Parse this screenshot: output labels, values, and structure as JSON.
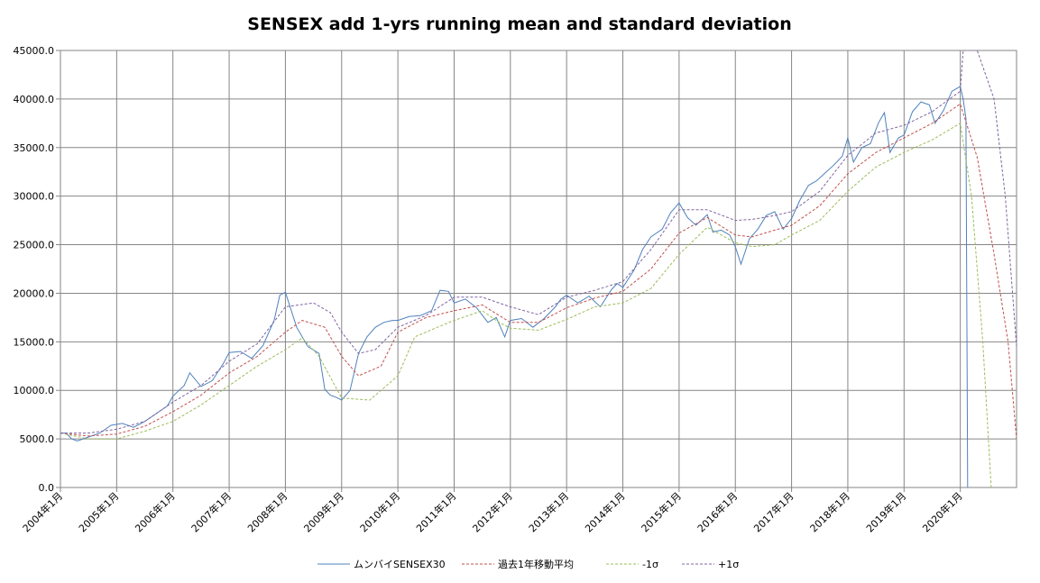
{
  "chart_data": {
    "type": "line",
    "title": "SENSEX add 1-yrs running mean and standard deviation",
    "xlabel": "",
    "ylabel": "",
    "ylim": [
      0,
      45000
    ],
    "yticks": [
      "0.0",
      "5000.0",
      "10000.0",
      "15000.0",
      "20000.0",
      "25000.0",
      "30000.0",
      "35000.0",
      "40000.0",
      "45000.0"
    ],
    "xticks": [
      "2004年1月",
      "2005年1月",
      "2006年1月",
      "2007年1月",
      "2008年1月",
      "2009年1月",
      "2010年1月",
      "2011年1月",
      "2012年1月",
      "2013年1月",
      "2014年1月",
      "2015年1月",
      "2016年1月",
      "2017年1月",
      "2018年1月",
      "2019年1月",
      "2020年1月"
    ],
    "x_start_year": 2004,
    "x_range_years": [
      2004,
      2021
    ],
    "grid": true,
    "legend": "bottom",
    "series": [
      {
        "name": "ムンバイSENSEX30",
        "color": "#4f81bd",
        "dash": "",
        "points": [
          [
            2004.0,
            5600
          ],
          [
            2004.1,
            5600
          ],
          [
            2004.2,
            5000
          ],
          [
            2004.3,
            4800
          ],
          [
            2004.5,
            5200
          ],
          [
            2004.7,
            5600
          ],
          [
            2004.9,
            6400
          ],
          [
            2005.1,
            6600
          ],
          [
            2005.3,
            6200
          ],
          [
            2005.5,
            6800
          ],
          [
            2005.7,
            7600
          ],
          [
            2005.9,
            8400
          ],
          [
            2006.0,
            9400
          ],
          [
            2006.2,
            10500
          ],
          [
            2006.3,
            11800
          ],
          [
            2006.5,
            10400
          ],
          [
            2006.7,
            11000
          ],
          [
            2006.9,
            12800
          ],
          [
            2007.0,
            13900
          ],
          [
            2007.2,
            14000
          ],
          [
            2007.4,
            13300
          ],
          [
            2007.6,
            14600
          ],
          [
            2007.8,
            17200
          ],
          [
            2007.9,
            19800
          ],
          [
            2008.0,
            20100
          ],
          [
            2008.2,
            16500
          ],
          [
            2008.4,
            14500
          ],
          [
            2008.6,
            13800
          ],
          [
            2008.7,
            10100
          ],
          [
            2008.8,
            9500
          ],
          [
            2008.9,
            9300
          ],
          [
            2009.0,
            9000
          ],
          [
            2009.15,
            10000
          ],
          [
            2009.3,
            13800
          ],
          [
            2009.45,
            15500
          ],
          [
            2009.6,
            16500
          ],
          [
            2009.75,
            17000
          ],
          [
            2009.9,
            17200
          ],
          [
            2010.0,
            17200
          ],
          [
            2010.2,
            17600
          ],
          [
            2010.4,
            17700
          ],
          [
            2010.6,
            18200
          ],
          [
            2010.75,
            20300
          ],
          [
            2010.9,
            20200
          ],
          [
            2011.0,
            19000
          ],
          [
            2011.2,
            19400
          ],
          [
            2011.4,
            18500
          ],
          [
            2011.6,
            17000
          ],
          [
            2011.75,
            17500
          ],
          [
            2011.9,
            15500
          ],
          [
            2012.0,
            17200
          ],
          [
            2012.2,
            17400
          ],
          [
            2012.4,
            16500
          ],
          [
            2012.6,
            17400
          ],
          [
            2012.8,
            18600
          ],
          [
            2012.9,
            19400
          ],
          [
            2013.0,
            19800
          ],
          [
            2013.2,
            19000
          ],
          [
            2013.4,
            19700
          ],
          [
            2013.6,
            18600
          ],
          [
            2013.8,
            20400
          ],
          [
            2013.9,
            21000
          ],
          [
            2014.0,
            20600
          ],
          [
            2014.2,
            22400
          ],
          [
            2014.35,
            24500
          ],
          [
            2014.5,
            25800
          ],
          [
            2014.7,
            26600
          ],
          [
            2014.85,
            28300
          ],
          [
            2015.0,
            29300
          ],
          [
            2015.15,
            27800
          ],
          [
            2015.3,
            27000
          ],
          [
            2015.5,
            28100
          ],
          [
            2015.6,
            26300
          ],
          [
            2015.75,
            26500
          ],
          [
            2015.9,
            26000
          ],
          [
            2016.0,
            24800
          ],
          [
            2016.1,
            23000
          ],
          [
            2016.25,
            25600
          ],
          [
            2016.4,
            26600
          ],
          [
            2016.55,
            28000
          ],
          [
            2016.7,
            28400
          ],
          [
            2016.85,
            26600
          ],
          [
            2017.0,
            27700
          ],
          [
            2017.15,
            29600
          ],
          [
            2017.3,
            31100
          ],
          [
            2017.45,
            31600
          ],
          [
            2017.6,
            32400
          ],
          [
            2017.75,
            33200
          ],
          [
            2017.9,
            34100
          ],
          [
            2018.0,
            36000
          ],
          [
            2018.1,
            33500
          ],
          [
            2018.25,
            35000
          ],
          [
            2018.4,
            35400
          ],
          [
            2018.55,
            37600
          ],
          [
            2018.65,
            38600
          ],
          [
            2018.75,
            34500
          ],
          [
            2018.9,
            36000
          ],
          [
            2019.0,
            36300
          ],
          [
            2019.15,
            38700
          ],
          [
            2019.3,
            39700
          ],
          [
            2019.45,
            39400
          ],
          [
            2019.55,
            37500
          ],
          [
            2019.7,
            38800
          ],
          [
            2019.85,
            40800
          ],
          [
            2020.0,
            41300
          ],
          [
            2020.05,
            40000
          ],
          [
            2020.1,
            38000
          ],
          [
            2020.13,
            0
          ]
        ]
      },
      {
        "name": "過去1年移動平均",
        "color": "#c0504d",
        "dash": "3,2",
        "points": [
          [
            2004.0,
            5600
          ],
          [
            2004.5,
            5300
          ],
          [
            2005.0,
            5500
          ],
          [
            2005.5,
            6300
          ],
          [
            2006.0,
            7800
          ],
          [
            2006.5,
            9500
          ],
          [
            2007.0,
            11800
          ],
          [
            2007.5,
            13500
          ],
          [
            2008.0,
            16000
          ],
          [
            2008.3,
            17200
          ],
          [
            2008.7,
            16500
          ],
          [
            2009.0,
            13500
          ],
          [
            2009.3,
            11500
          ],
          [
            2009.7,
            12500
          ],
          [
            2010.0,
            16000
          ],
          [
            2010.5,
            17500
          ],
          [
            2011.0,
            18200
          ],
          [
            2011.5,
            18800
          ],
          [
            2012.0,
            17000
          ],
          [
            2012.5,
            17000
          ],
          [
            2013.0,
            18500
          ],
          [
            2013.5,
            19500
          ],
          [
            2014.0,
            20200
          ],
          [
            2014.5,
            22500
          ],
          [
            2015.0,
            26200
          ],
          [
            2015.5,
            27800
          ],
          [
            2016.0,
            26000
          ],
          [
            2016.3,
            25800
          ],
          [
            2016.7,
            26500
          ],
          [
            2017.0,
            27000
          ],
          [
            2017.5,
            29000
          ],
          [
            2018.0,
            32300
          ],
          [
            2018.5,
            34500
          ],
          [
            2019.0,
            36000
          ],
          [
            2019.5,
            37500
          ],
          [
            2020.0,
            39500
          ],
          [
            2020.3,
            34000
          ],
          [
            2020.6,
            24000
          ],
          [
            2020.85,
            15000
          ],
          [
            2021.0,
            5000
          ],
          [
            2021.1,
            3000
          ]
        ]
      },
      {
        "name": "-1σ",
        "color": "#9bbb59",
        "dash": "3,2",
        "points": [
          [
            2004.0,
            5600
          ],
          [
            2004.5,
            5000
          ],
          [
            2005.0,
            5000
          ],
          [
            2005.5,
            5800
          ],
          [
            2006.0,
            6800
          ],
          [
            2006.5,
            8500
          ],
          [
            2007.0,
            10500
          ],
          [
            2007.5,
            12500
          ],
          [
            2008.0,
            14200
          ],
          [
            2008.3,
            15400
          ],
          [
            2008.6,
            13500
          ],
          [
            2009.0,
            9200
          ],
          [
            2009.5,
            9000
          ],
          [
            2010.0,
            11500
          ],
          [
            2010.3,
            15500
          ],
          [
            2010.7,
            16500
          ],
          [
            2011.0,
            17200
          ],
          [
            2011.5,
            18200
          ],
          [
            2011.8,
            17000
          ],
          [
            2012.0,
            16400
          ],
          [
            2012.5,
            16200
          ],
          [
            2013.0,
            17300
          ],
          [
            2013.5,
            18600
          ],
          [
            2014.0,
            19000
          ],
          [
            2014.5,
            20500
          ],
          [
            2015.0,
            24000
          ],
          [
            2015.5,
            26800
          ],
          [
            2016.0,
            25200
          ],
          [
            2016.3,
            24800
          ],
          [
            2016.7,
            25000
          ],
          [
            2017.0,
            26000
          ],
          [
            2017.5,
            27500
          ],
          [
            2018.0,
            30500
          ],
          [
            2018.5,
            33000
          ],
          [
            2019.0,
            34500
          ],
          [
            2019.5,
            35800
          ],
          [
            2020.0,
            37500
          ],
          [
            2020.2,
            30000
          ],
          [
            2020.4,
            15000
          ],
          [
            2020.55,
            0
          ]
        ]
      },
      {
        "name": "+1σ",
        "color": "#8064a2",
        "dash": "3,2",
        "points": [
          [
            2004.0,
            5600
          ],
          [
            2004.5,
            5600
          ],
          [
            2005.0,
            6000
          ],
          [
            2005.5,
            6800
          ],
          [
            2006.0,
            8800
          ],
          [
            2006.5,
            10500
          ],
          [
            2007.0,
            13000
          ],
          [
            2007.5,
            14800
          ],
          [
            2008.0,
            18600
          ],
          [
            2008.5,
            19000
          ],
          [
            2008.8,
            18000
          ],
          [
            2009.0,
            16000
          ],
          [
            2009.3,
            13800
          ],
          [
            2009.6,
            14200
          ],
          [
            2010.0,
            16500
          ],
          [
            2010.5,
            17700
          ],
          [
            2011.0,
            19600
          ],
          [
            2011.5,
            19600
          ],
          [
            2012.0,
            18600
          ],
          [
            2012.5,
            17800
          ],
          [
            2013.0,
            19600
          ],
          [
            2013.5,
            20300
          ],
          [
            2014.0,
            21200
          ],
          [
            2014.5,
            24500
          ],
          [
            2015.0,
            28600
          ],
          [
            2015.5,
            28600
          ],
          [
            2016.0,
            27500
          ],
          [
            2016.3,
            27600
          ],
          [
            2016.7,
            28000
          ],
          [
            2017.0,
            28400
          ],
          [
            2017.5,
            30500
          ],
          [
            2018.0,
            34200
          ],
          [
            2018.5,
            36500
          ],
          [
            2019.0,
            37300
          ],
          [
            2019.5,
            38700
          ],
          [
            2020.0,
            40800
          ],
          [
            2020.05,
            45000
          ],
          [
            2020.3,
            45000
          ],
          [
            2020.6,
            40000
          ],
          [
            2020.8,
            30000
          ],
          [
            2021.0,
            14500
          ]
        ]
      }
    ]
  }
}
